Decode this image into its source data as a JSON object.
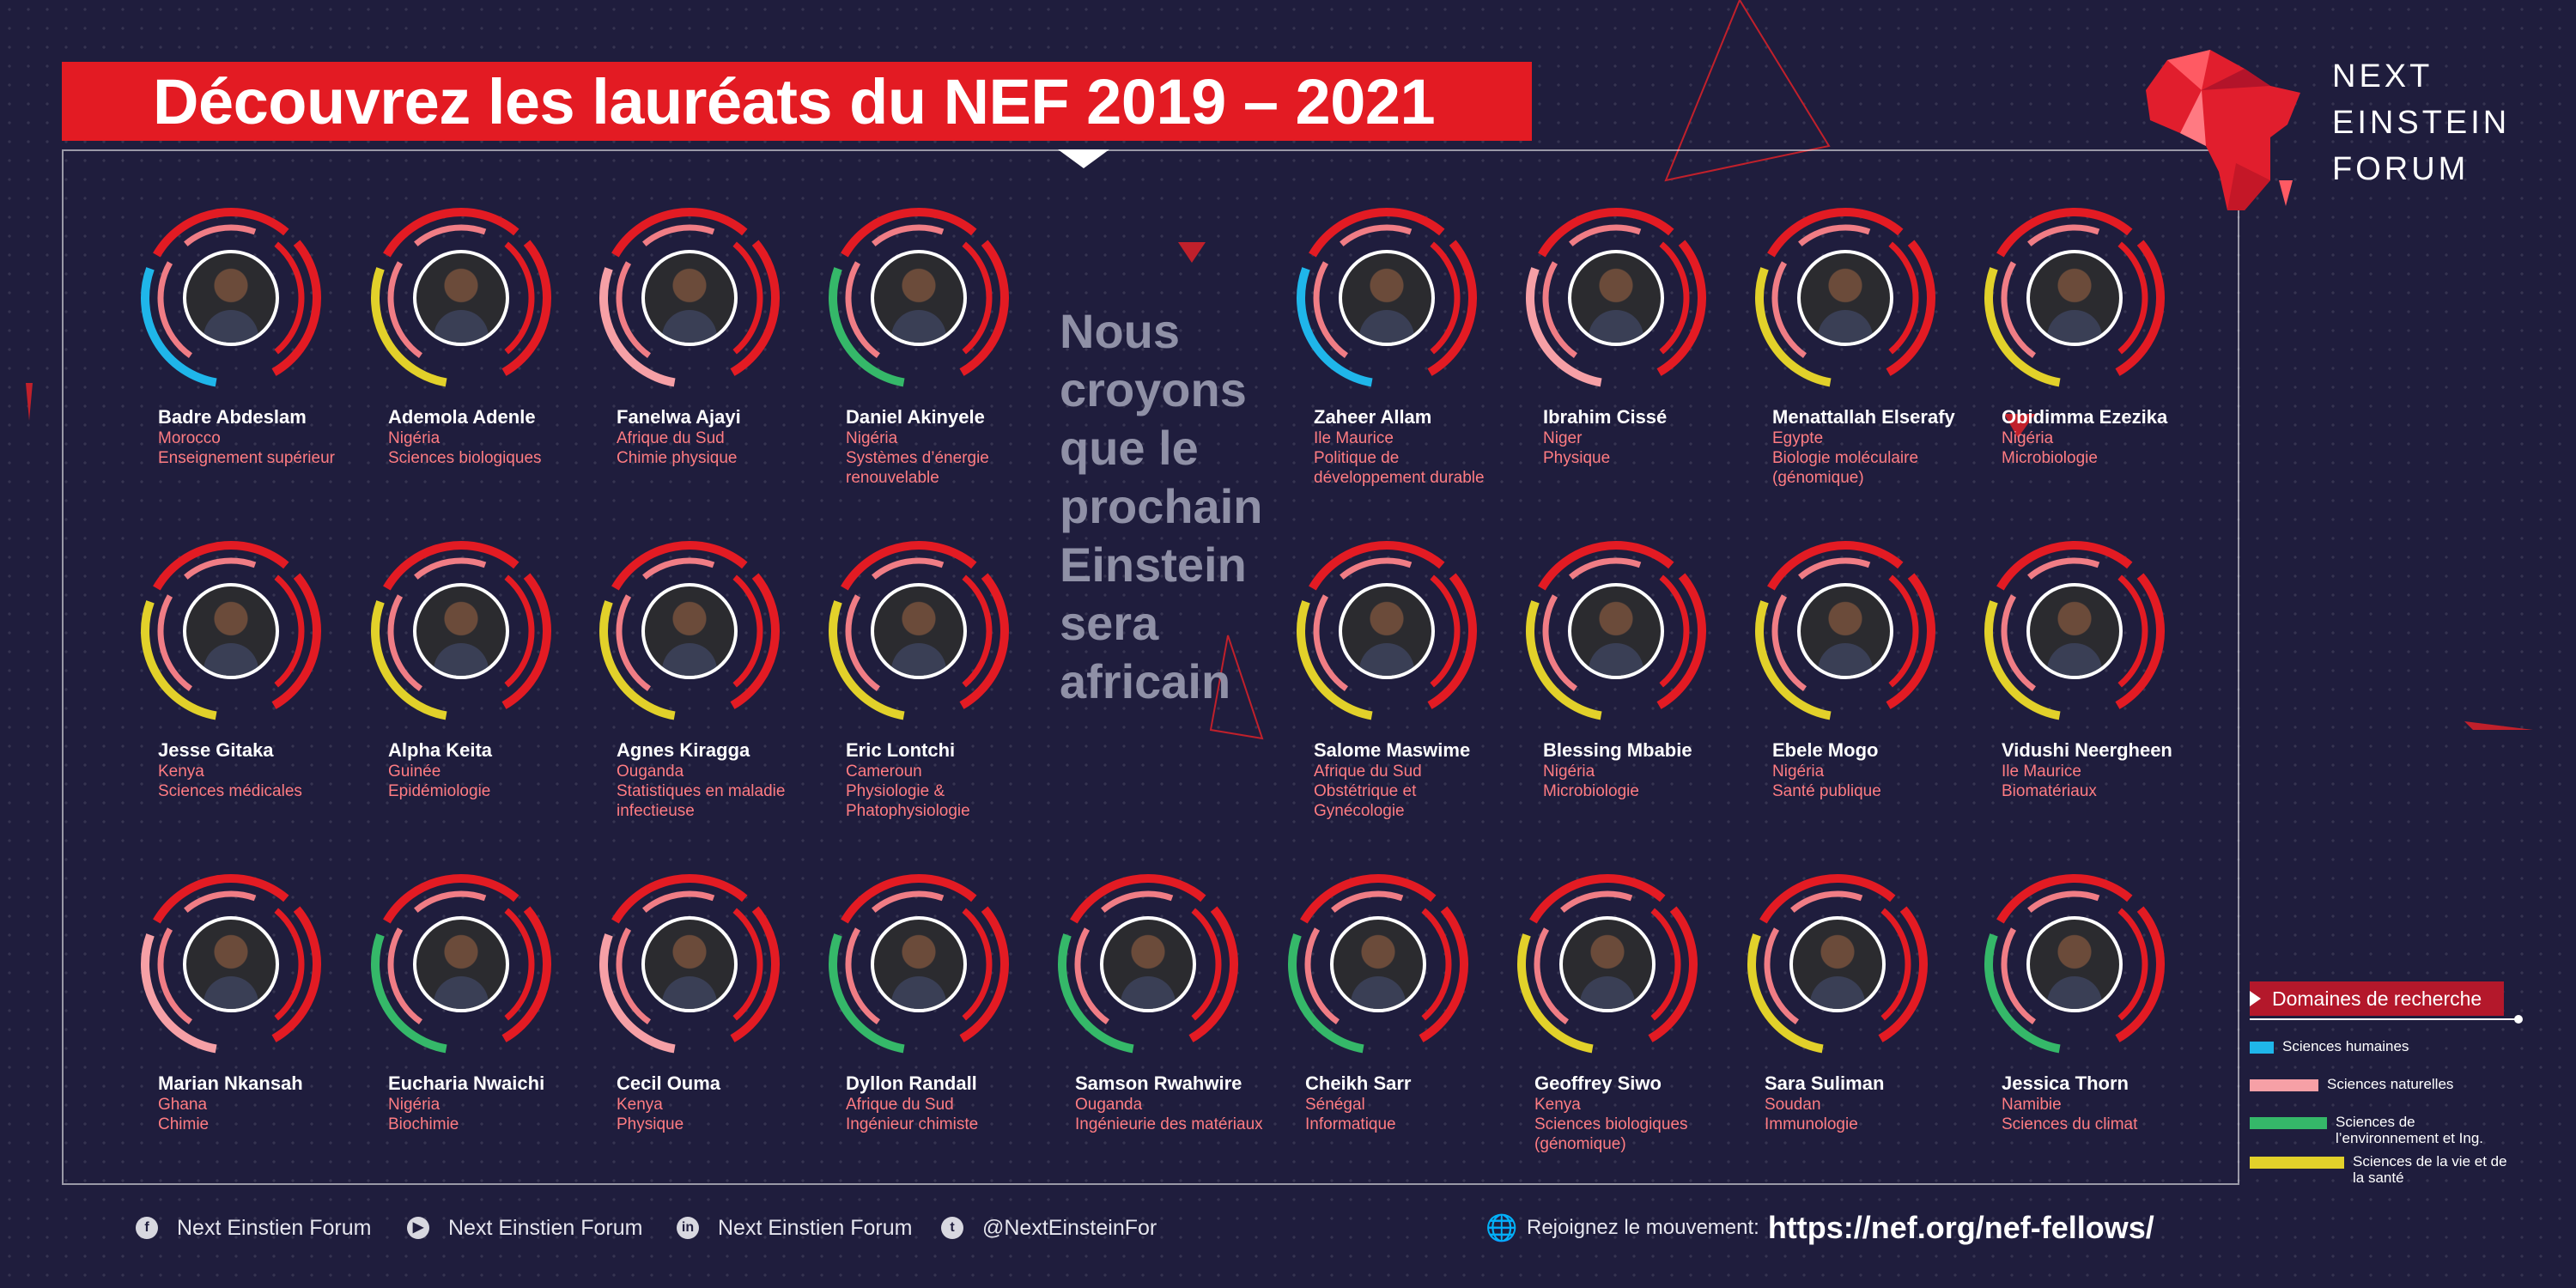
{
  "title": "Découvrez les lauréats du NEF 2019 – 2021",
  "logo": {
    "lines": [
      "NEXT",
      "EINSTEIN",
      "FORUM"
    ]
  },
  "belief": [
    "Nous",
    "croyons",
    "que le",
    "prochain",
    "Einstein",
    "sera",
    "africain"
  ],
  "colors": {
    "background": "#1f1d3d",
    "accent": "#e31b23",
    "sciences_humaines": "#1fb6ea",
    "sciences_naturelles": "#f6a0a6",
    "sciences_environnement": "#35b869",
    "sciences_vie": "#e2d12a"
  },
  "fellows": [
    {
      "name": "Badre Abdeslam",
      "country": "Morocco",
      "field": "Enseignement supérieur",
      "domain": "humaines"
    },
    {
      "name": "Ademola Adenle",
      "country": "Nigéria",
      "field": "Sciences biologiques",
      "domain": "vie"
    },
    {
      "name": "Fanelwa Ajayi",
      "country": "Afrique du Sud",
      "field": "Chimie physique",
      "domain": "naturelles"
    },
    {
      "name": "Daniel Akinyele",
      "country": "Nigéria",
      "field": "Systèmes d’énergie renouvelable",
      "domain": "environnement"
    },
    {
      "name": "Zaheer Allam",
      "country": "Ile Maurice",
      "field": "Politique de développement durable",
      "domain": "humaines"
    },
    {
      "name": "Ibrahim Cissé",
      "country": "Niger",
      "field": "Physique",
      "domain": "naturelles"
    },
    {
      "name": "Menattallah Elserafy",
      "country": "Egypte",
      "field": "Biologie moléculaire (génomique)",
      "domain": "vie"
    },
    {
      "name": "Obidimma Ezezika",
      "country": "Nigéria",
      "field": "Microbiologie",
      "domain": "vie"
    },
    {
      "name": "Jesse Gitaka",
      "country": "Kenya",
      "field": "Sciences médicales",
      "domain": "vie"
    },
    {
      "name": "Alpha Keita",
      "country": "Guinée",
      "field": "Epidémiologie",
      "domain": "vie"
    },
    {
      "name": "Agnes Kiragga",
      "country": "Ouganda",
      "field": "Statistiques en maladie infectieuse",
      "domain": "vie"
    },
    {
      "name": "Eric Lontchi",
      "country": "Cameroun",
      "field": "Physiologie & Phatophysiologie",
      "domain": "vie"
    },
    {
      "name": "Salome Maswime",
      "country": "Afrique du Sud",
      "field": "Obstétrique et Gynécologie",
      "domain": "vie"
    },
    {
      "name": "Blessing Mbabie",
      "country": "Nigéria",
      "field": "Microbiologie",
      "domain": "vie"
    },
    {
      "name": "Ebele Mogo",
      "country": "Nigéria",
      "field": "Santé publique",
      "domain": "vie"
    },
    {
      "name": "Vidushi Neergheen",
      "country": "Ile Maurice",
      "field": "Biomatériaux",
      "domain": "vie"
    },
    {
      "name": "Marian Nkansah",
      "country": "Ghana",
      "field": "Chimie",
      "domain": "naturelles"
    },
    {
      "name": "Eucharia Nwaichi",
      "country": "Nigéria",
      "field": "Biochimie",
      "domain": "environnement"
    },
    {
      "name": "Cecil Ouma",
      "country": "Kenya",
      "field": "Physique",
      "domain": "naturelles"
    },
    {
      "name": "Dyllon Randall",
      "country": "Afrique du Sud",
      "field": "Ingénieur chimiste",
      "domain": "environnement"
    },
    {
      "name": "Samson Rwahwire",
      "country": "Ouganda",
      "field": "Ingénieurie des matériaux",
      "domain": "environnement"
    },
    {
      "name": "Cheikh Sarr",
      "country": "Sénégal",
      "field": "Informatique",
      "domain": "environnement"
    },
    {
      "name": "Geoffrey Siwo",
      "country": "Kenya",
      "field": "Sciences biologiques (génomique)",
      "domain": "vie"
    },
    {
      "name": "Sara Suliman",
      "country": "Soudan",
      "field": "Immunologie",
      "domain": "vie"
    },
    {
      "name": "Jessica Thorn",
      "country": "Namibie",
      "field": "Sciences du climat",
      "domain": "environnement"
    }
  ],
  "legend": {
    "title": "Domaines de recherche",
    "items": [
      {
        "label": "Sciences humaines",
        "color": "#1fb6ea"
      },
      {
        "label": "Sciences naturelles",
        "color": "#f6a0a6"
      },
      {
        "label": "Sciences de l’environnement et Ing.",
        "color": "#35b869"
      },
      {
        "label": "Sciences de la vie et de la santé",
        "color": "#e2d12a"
      }
    ]
  },
  "footer": {
    "socials": [
      {
        "icon": "facebook-icon",
        "label": "Next Einstien Forum"
      },
      {
        "icon": "youtube-icon",
        "label": "Next Einstien Forum"
      },
      {
        "icon": "linkedin-icon",
        "label": "Next Einstien Forum"
      },
      {
        "icon": "twitter-icon",
        "label": "@NextEinsteinFor"
      }
    ],
    "join_label": "Rejoignez le mouvement:",
    "url": "https://nef.org/nef-fellows/"
  }
}
